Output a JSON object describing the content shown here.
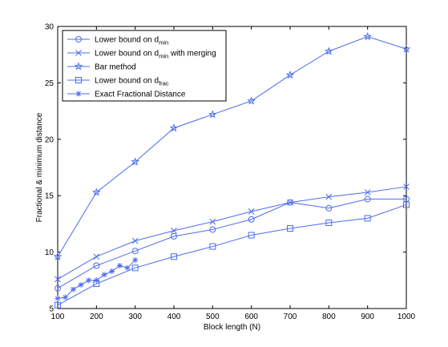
{
  "chart_data": {
    "type": "line",
    "xlabel": "Block length (N)",
    "ylabel": "Fractional & minimum distance",
    "xlim": [
      100,
      1000
    ],
    "ylim": [
      5,
      30
    ],
    "x_ticks": [
      100,
      200,
      300,
      400,
      500,
      600,
      700,
      800,
      900,
      1000
    ],
    "y_ticks": [
      5,
      10,
      15,
      20,
      25,
      30
    ],
    "grid": false,
    "legend_position": "top-left",
    "line_color": "#4a6cf0",
    "series": [
      {
        "name": "Lower bound on d",
        "name_sub": "min",
        "name_suffix": "",
        "marker": "circle",
        "x": [
          100,
          200,
          300,
          400,
          500,
          600,
          700,
          800,
          900,
          1000
        ],
        "y": [
          6.8,
          8.8,
          10.1,
          11.4,
          12.0,
          12.9,
          14.4,
          13.9,
          14.7,
          14.7
        ]
      },
      {
        "name": "Lower bound on d",
        "name_sub": "min",
        "name_suffix": " with merging",
        "marker": "x",
        "x": [
          100,
          200,
          300,
          400,
          500,
          600,
          700,
          800,
          900,
          1000
        ],
        "y": [
          7.6,
          9.6,
          11.0,
          11.9,
          12.7,
          13.6,
          14.4,
          14.9,
          15.3,
          15.8
        ]
      },
      {
        "name": "Bar method",
        "name_sub": "",
        "name_suffix": "",
        "marker": "star",
        "x": [
          100,
          200,
          300,
          400,
          500,
          600,
          700,
          800,
          900,
          1000
        ],
        "y": [
          9.6,
          15.3,
          18.0,
          21.0,
          22.2,
          23.4,
          25.7,
          27.8,
          29.1,
          28.0
        ]
      },
      {
        "name": "Lower bound on d",
        "name_sub": "frac",
        "name_suffix": "",
        "marker": "square",
        "x": [
          100,
          200,
          300,
          400,
          500,
          600,
          700,
          800,
          900,
          1000
        ],
        "y": [
          5.3,
          7.2,
          8.6,
          9.6,
          10.5,
          11.5,
          12.1,
          12.6,
          13.0,
          14.2
        ]
      },
      {
        "name": "Exact Fractional Distance",
        "name_sub": "",
        "name_suffix": "",
        "marker": "asterisk",
        "x": [
          100,
          120,
          140,
          160,
          180,
          200,
          220,
          240,
          260,
          280,
          300
        ],
        "y": [
          5.9,
          6.0,
          6.7,
          7.1,
          7.5,
          7.5,
          8.0,
          8.3,
          8.8,
          8.6,
          9.3
        ]
      }
    ]
  }
}
